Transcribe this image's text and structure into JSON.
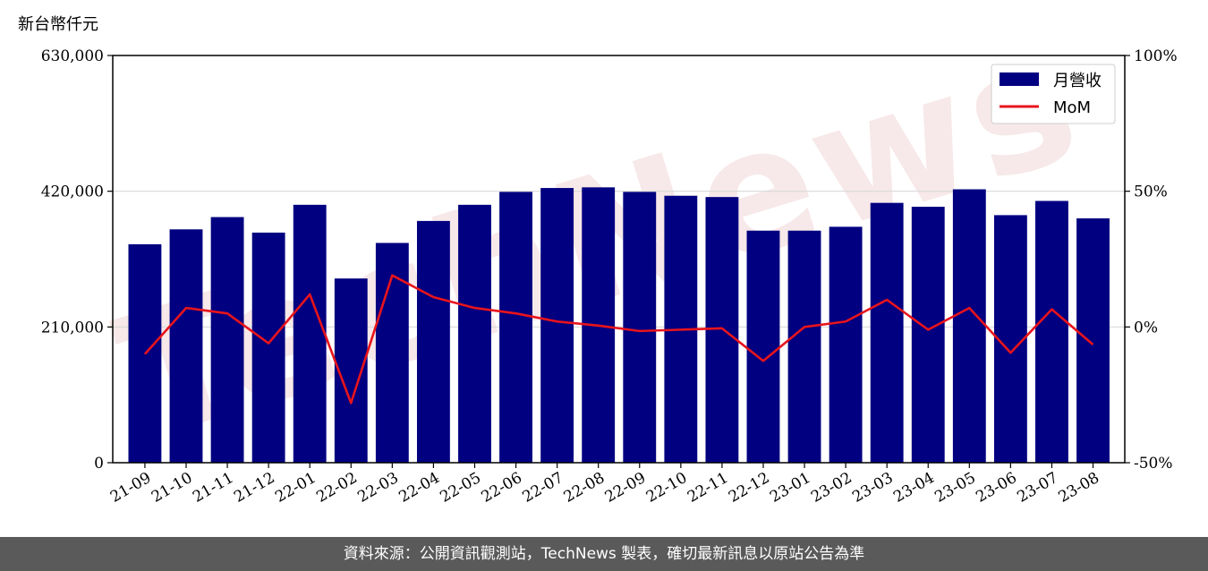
{
  "chart_data": {
    "type": "bar",
    "y_unit_label": "新台幣仟元",
    "categories": [
      "21-09",
      "21-10",
      "21-11",
      "21-12",
      "22-01",
      "22-02",
      "22-03",
      "22-04",
      "22-05",
      "22-06",
      "22-07",
      "22-08",
      "22-09",
      "22-10",
      "22-11",
      "22-12",
      "23-01",
      "23-02",
      "23-03",
      "23-04",
      "23-05",
      "23-06",
      "23-07",
      "23-08"
    ],
    "series": [
      {
        "name": "月營收",
        "type": "bar",
        "axis": "left",
        "color": "#000080",
        "values": [
          338000,
          361000,
          380000,
          356000,
          399000,
          285000,
          340000,
          374000,
          399000,
          419000,
          425000,
          426000,
          419000,
          413000,
          411000,
          359000,
          359000,
          365000,
          402000,
          396000,
          423000,
          383000,
          405000,
          378000
        ]
      },
      {
        "name": "MoM",
        "type": "line",
        "axis": "right",
        "color": "#e8141c",
        "values": [
          -10,
          7,
          5,
          -6,
          12,
          -28,
          19,
          11,
          7,
          5,
          2,
          0.5,
          -1.5,
          -1,
          -0.5,
          -12.5,
          0,
          2,
          10,
          -1,
          7,
          -9.5,
          6.5,
          -6.5
        ]
      }
    ],
    "left_axis": {
      "ylim": [
        0,
        630000
      ],
      "ticks": [
        "0",
        "210,000",
        "420,000",
        "630,000"
      ],
      "tick_values": [
        0,
        210000,
        420000,
        630000
      ]
    },
    "right_axis": {
      "ylim": [
        -50,
        100
      ],
      "ticks": [
        "-50%",
        "0%",
        "50%",
        "100%"
      ],
      "tick_values": [
        -50,
        0,
        50,
        100
      ]
    },
    "grid": "horizontal",
    "legend_position": "top-right",
    "watermark": "TechNews"
  },
  "footer": {
    "source_text": "資料來源：公開資訊觀測站，TechNews 製表，確切最新訊息以原站公告為準"
  }
}
